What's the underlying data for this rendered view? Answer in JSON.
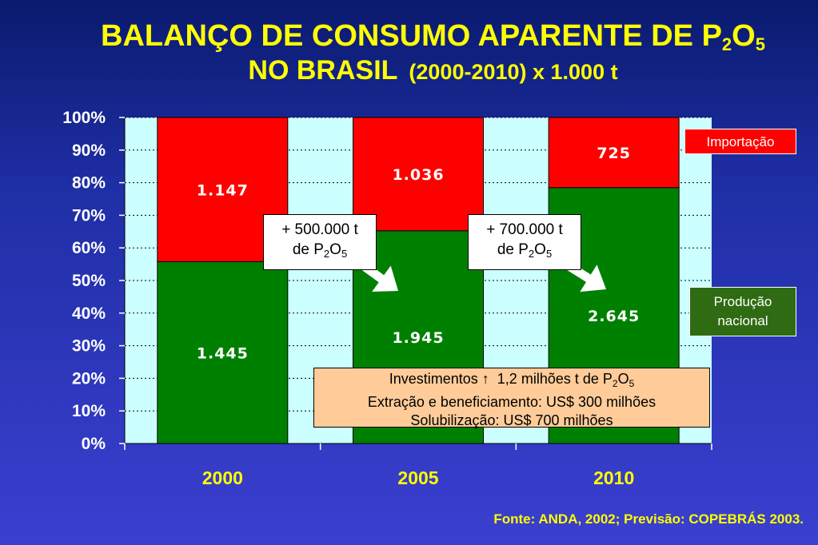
{
  "title": {
    "line1_text": "BALANÇO DE CONSUMO APARENTE DE P",
    "line1_sub1": "2",
    "line1_mid": "O",
    "line1_sub2": "5",
    "line2_main": "NO BRASIL",
    "line2_sub": "(2000-2010) x 1.000 t"
  },
  "chart_data": {
    "type": "bar",
    "stacked": "percent",
    "categories": [
      "2000",
      "2005",
      "2010"
    ],
    "series": [
      {
        "name": "Produção nacional",
        "values": [
          1445,
          1945,
          2645
        ],
        "labels": [
          "1.445",
          "1.945",
          "2.645"
        ],
        "color": "#008000"
      },
      {
        "name": "Importação",
        "values": [
          1147,
          1036,
          725
        ],
        "labels": [
          "1.147",
          "1.036",
          "725"
        ],
        "color": "#ff0000"
      }
    ],
    "y_ticks": [
      "0%",
      "10%",
      "20%",
      "30%",
      "40%",
      "50%",
      "60%",
      "70%",
      "80%",
      "90%",
      "100%"
    ],
    "ylim": [
      0,
      100
    ],
    "grid": true,
    "plot_background": "#ccffff",
    "category_label_color": "#ffff00"
  },
  "legend": {
    "import_label": "Importação",
    "prod_line1": "Produção",
    "prod_line2": "nacional"
  },
  "callouts": [
    {
      "line1": "+ 500.000 t",
      "line2_prefix": "de P",
      "sub1": "2",
      "mid": "O",
      "sub2": "5"
    },
    {
      "line1": "+ 700.000 t",
      "line2_prefix": "de P",
      "sub1": "2",
      "mid": "O",
      "sub2": "5"
    }
  ],
  "investments": {
    "line1_prefix": "Investimentos",
    "line1_arrow": "↑",
    "line1_text": "1,2 milhões t de P",
    "line1_sub1": "2",
    "line1_mid": "O",
    "line1_sub2": "5",
    "line2": "Extração e beneficiamento: US$ 300 milhões",
    "line3": "Solubilização: US$ 700 milhões"
  },
  "source": "Fonte: ANDA, 2002; Previsão: COPEBRÁS 2003."
}
